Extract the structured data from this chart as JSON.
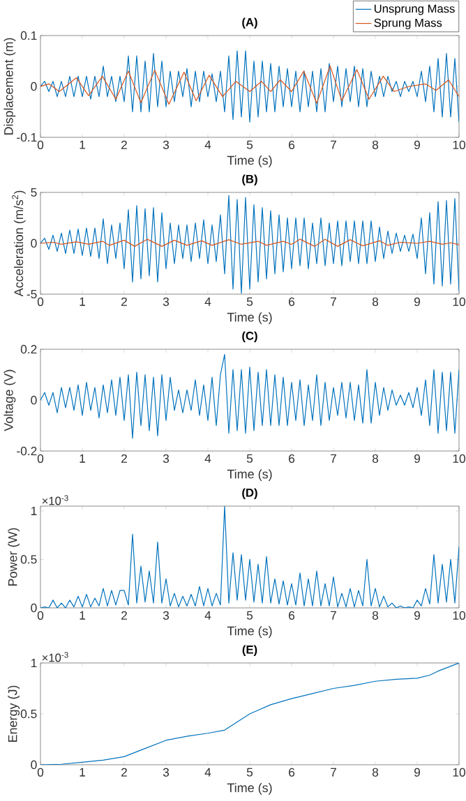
{
  "chart_data": [
    {
      "type": "line",
      "title": "(A)",
      "xlabel": "Time (s)",
      "ylabel": "Displacement (m)",
      "legend": "top right",
      "xlim": [
        0,
        10
      ],
      "xticks": [
        0,
        1,
        2,
        3,
        4,
        5,
        6,
        7,
        8,
        9,
        10
      ],
      "ylim": [
        -0.1,
        0.1
      ],
      "yticks": [
        -0.1,
        0,
        0.1
      ],
      "x": [
        0,
        0.1,
        0.2,
        0.3,
        0.4,
        0.5,
        0.6,
        0.7,
        0.8,
        0.9,
        1,
        1.1,
        1.2,
        1.3,
        1.4,
        1.5,
        1.6,
        1.7,
        1.8,
        1.9,
        2,
        2.1,
        2.2,
        2.3,
        2.4,
        2.5,
        2.6,
        2.7,
        2.8,
        2.9,
        3,
        3.1,
        3.2,
        3.3,
        3.4,
        3.5,
        3.6,
        3.7,
        3.8,
        3.9,
        4,
        4.1,
        4.2,
        4.3,
        4.4,
        4.5,
        4.6,
        4.7,
        4.8,
        4.9,
        5,
        5.1,
        5.2,
        5.3,
        5.4,
        5.5,
        5.6,
        5.7,
        5.8,
        5.9,
        6,
        6.1,
        6.2,
        6.3,
        6.4,
        6.5,
        6.6,
        6.7,
        6.8,
        6.9,
        7,
        7.1,
        7.2,
        7.3,
        7.4,
        7.5,
        7.6,
        7.7,
        7.8,
        7.9,
        8,
        8.1,
        8.2,
        8.3,
        8.4,
        8.5,
        8.6,
        8.7,
        8.8,
        8.9,
        9,
        9.1,
        9.2,
        9.3,
        9.4,
        9.5,
        9.6,
        9.7,
        9.8,
        9.9,
        10
      ],
      "series": [
        {
          "name": "Unsprung Mass",
          "color": "#0072bd",
          "values": [
            0,
            0.01,
            -0.01,
            0.01,
            -0.02,
            0.01,
            -0.02,
            0.02,
            -0.02,
            0.02,
            -0.02,
            0.02,
            -0.025,
            0.02,
            -0.02,
            0.04,
            -0.02,
            0.02,
            -0.03,
            0.02,
            -0.03,
            0.06,
            -0.05,
            0.06,
            -0.05,
            0.05,
            -0.05,
            0.065,
            -0.04,
            0.05,
            -0.04,
            0.03,
            -0.03,
            0.03,
            -0.02,
            0.035,
            -0.04,
            0.03,
            -0.03,
            0.03,
            -0.02,
            0.025,
            -0.03,
            0.03,
            -0.05,
            0.06,
            -0.065,
            0.07,
            -0.06,
            0.07,
            -0.07,
            0.05,
            -0.06,
            0.05,
            -0.05,
            0.045,
            -0.05,
            0.04,
            -0.04,
            0.035,
            -0.04,
            0.03,
            -0.05,
            0.03,
            -0.04,
            0.03,
            -0.05,
            0.035,
            -0.05,
            0.045,
            -0.03,
            0.04,
            -0.04,
            0.035,
            -0.03,
            0.04,
            -0.04,
            0.035,
            -0.04,
            0.03,
            -0.02,
            0.02,
            -0.02,
            0.02,
            -0.01,
            0.01,
            -0.02,
            0.01,
            -0.01,
            0.01,
            -0.02,
            0.03,
            -0.03,
            0.04,
            -0.05,
            0.055,
            -0.06,
            0.065,
            -0.06,
            0.055,
            -0.07
          ]
        },
        {
          "name": "Sprung Mass",
          "color": "#d95319",
          "x": [
            0,
            0.2,
            0.45,
            0.86,
            1.15,
            1.48,
            1.8,
            2.1,
            2.4,
            2.73,
            3.07,
            3.43,
            3.72,
            4.03,
            4.35,
            4.67,
            5.0,
            5.28,
            5.5,
            5.73,
            6.0,
            6.29,
            6.6,
            6.92,
            7.2,
            7.56,
            7.85,
            8.19,
            8.45,
            8.8,
            9.2,
            9.45,
            9.75,
            10
          ],
          "values": [
            0,
            0.005,
            -0.01,
            0.017,
            -0.018,
            0.02,
            -0.025,
            0.03,
            -0.032,
            0.032,
            -0.035,
            0.028,
            -0.028,
            0.022,
            -0.02,
            0.01,
            -0.01,
            0.01,
            -0.01,
            0.013,
            -0.01,
            0.03,
            -0.033,
            0.04,
            -0.028,
            0.033,
            -0.025,
            0.02,
            -0.01,
            0,
            0.005,
            -0.008,
            0.013,
            -0.02
          ]
        }
      ]
    },
    {
      "type": "line",
      "title": "(B)",
      "xlabel": "Time (s)",
      "ylabel": "Acceleration (m/s$^{2}$)",
      "xlim": [
        0,
        10
      ],
      "xticks": [
        0,
        1,
        2,
        3,
        4,
        5,
        6,
        7,
        8,
        9,
        10
      ],
      "ylim": [
        -5,
        5
      ],
      "yticks": [
        -5,
        0,
        5
      ],
      "x": [
        0,
        0.1,
        0.2,
        0.3,
        0.4,
        0.5,
        0.6,
        0.7,
        0.8,
        0.9,
        1,
        1.1,
        1.2,
        1.3,
        1.4,
        1.5,
        1.6,
        1.7,
        1.8,
        1.9,
        2,
        2.1,
        2.2,
        2.3,
        2.4,
        2.5,
        2.6,
        2.7,
        2.8,
        2.9,
        3,
        3.1,
        3.2,
        3.3,
        3.4,
        3.5,
        3.6,
        3.7,
        3.8,
        3.9,
        4,
        4.1,
        4.2,
        4.3,
        4.4,
        4.5,
        4.6,
        4.7,
        4.8,
        4.9,
        5,
        5.1,
        5.2,
        5.3,
        5.4,
        5.5,
        5.6,
        5.7,
        5.8,
        5.9,
        6,
        6.1,
        6.2,
        6.3,
        6.4,
        6.5,
        6.6,
        6.7,
        6.8,
        6.9,
        7,
        7.1,
        7.2,
        7.3,
        7.4,
        7.5,
        7.6,
        7.7,
        7.8,
        7.9,
        8,
        8.1,
        8.2,
        8.3,
        8.4,
        8.5,
        8.6,
        8.7,
        8.8,
        8.9,
        9,
        9.1,
        9.2,
        9.3,
        9.4,
        9.5,
        9.6,
        9.7,
        9.8,
        9.9,
        10
      ],
      "series": [
        {
          "color": "#0072bd",
          "values": [
            0,
            0.5,
            -0.6,
            0.8,
            -0.8,
            1,
            -1,
            1.3,
            -1,
            1.4,
            -1.2,
            1.5,
            -1.3,
            1.5,
            -1.5,
            2.4,
            -2,
            1.8,
            -1.5,
            2,
            -2.5,
            3.3,
            -3.8,
            3.7,
            -3.5,
            3.4,
            -3.2,
            3.5,
            -3.8,
            3,
            -2.5,
            2,
            -2,
            1.8,
            -1.5,
            1.8,
            -1.8,
            2,
            -1.5,
            2.3,
            -2,
            1.8,
            -1.8,
            2.8,
            -3,
            4.7,
            -4.5,
            4.3,
            -4.9,
            4.5,
            -4.5,
            3.8,
            -3.8,
            3.5,
            -3.5,
            3.2,
            -3,
            2.8,
            -2.8,
            2.5,
            -2.5,
            2.5,
            -2.2,
            2.5,
            -2.5,
            2,
            -2,
            2.5,
            -2.2,
            2,
            -2,
            2.2,
            -2.2,
            2.2,
            -1.8,
            2.2,
            -2,
            2.2,
            -2,
            2.2,
            -1.8,
            1.6,
            -1.5,
            1.2,
            -1,
            1,
            -0.8,
            0.8,
            -0.8,
            0.9,
            -1.5,
            2.5,
            -3,
            3,
            -4,
            4.1,
            -4.2,
            4.2,
            -4,
            4.4,
            -4.7
          ]
        },
        {
          "color": "#d95319",
          "x": [
            0,
            0.3,
            0.5,
            0.86,
            1.15,
            1.48,
            1.65,
            2.0,
            2.25,
            2.55,
            2.9,
            3.2,
            3.5,
            3.85,
            4.1,
            4.5,
            4.8,
            5.2,
            5.4,
            5.8,
            6.0,
            6.2,
            6.55,
            6.8,
            7.1,
            7.4,
            7.7,
            8.1,
            8.3,
            8.6,
            9.0,
            9.3,
            9.6,
            9.8,
            10
          ],
          "values": [
            0,
            0.1,
            -0.1,
            0.15,
            -0.1,
            0.2,
            -0.2,
            0.3,
            -0.3,
            0.4,
            -0.3,
            0.3,
            -0.2,
            0.25,
            -0.2,
            0.35,
            -0.1,
            0.2,
            -0.2,
            0.2,
            -0.1,
            0.4,
            -0.3,
            0.4,
            -0.3,
            0.35,
            -0.25,
            0.25,
            -0.2,
            0.1,
            0,
            0.2,
            -0.1,
            0.05,
            -0.15
          ]
        }
      ]
    },
    {
      "type": "line",
      "title": "(C)",
      "xlabel": "Time (s)",
      "ylabel": "Voltage (V)",
      "xlim": [
        0,
        10
      ],
      "xticks": [
        0,
        1,
        2,
        3,
        4,
        5,
        6,
        7,
        8,
        9,
        10
      ],
      "ylim": [
        -0.2,
        0.2
      ],
      "yticks": [
        -0.2,
        0,
        0.2
      ],
      "x": [
        0,
        0.1,
        0.2,
        0.3,
        0.4,
        0.5,
        0.6,
        0.7,
        0.8,
        0.9,
        1,
        1.1,
        1.2,
        1.3,
        1.4,
        1.5,
        1.6,
        1.7,
        1.8,
        1.9,
        2,
        2.1,
        2.2,
        2.3,
        2.4,
        2.5,
        2.6,
        2.7,
        2.8,
        2.9,
        3,
        3.1,
        3.2,
        3.3,
        3.4,
        3.5,
        3.6,
        3.7,
        3.8,
        3.9,
        4,
        4.1,
        4.2,
        4.3,
        4.4,
        4.5,
        4.6,
        4.7,
        4.8,
        4.9,
        5,
        5.1,
        5.2,
        5.3,
        5.4,
        5.5,
        5.6,
        5.7,
        5.8,
        5.9,
        6,
        6.1,
        6.2,
        6.3,
        6.4,
        6.5,
        6.6,
        6.7,
        6.8,
        6.9,
        7,
        7.1,
        7.2,
        7.3,
        7.4,
        7.5,
        7.6,
        7.7,
        7.8,
        7.9,
        8,
        8.1,
        8.2,
        8.3,
        8.4,
        8.5,
        8.6,
        8.7,
        8.8,
        8.9,
        9,
        9.1,
        9.2,
        9.3,
        9.4,
        9.5,
        9.6,
        9.7,
        9.8,
        9.9,
        10
      ],
      "series": [
        {
          "color": "#0072bd",
          "values": [
            0,
            0.03,
            -0.02,
            0.03,
            -0.05,
            0.05,
            -0.03,
            0.05,
            -0.04,
            0.06,
            -0.06,
            0.07,
            -0.04,
            0.05,
            -0.07,
            0.06,
            -0.05,
            0.08,
            -0.06,
            0.09,
            -0.08,
            0.1,
            -0.15,
            0.11,
            -0.1,
            0.1,
            -0.12,
            0.09,
            -0.14,
            0.1,
            -0.08,
            0.09,
            -0.04,
            0.04,
            -0.05,
            0.04,
            -0.04,
            0.08,
            -0.06,
            0.06,
            -0.08,
            0.09,
            -0.1,
            0.1,
            0.18,
            -0.13,
            0.12,
            -0.12,
            0.12,
            -0.13,
            0.13,
            -0.12,
            0.11,
            -0.1,
            0.12,
            -0.1,
            0.1,
            -0.1,
            0.09,
            -0.1,
            0.07,
            -0.08,
            0.08,
            -0.1,
            0.06,
            -0.08,
            0.1,
            -0.1,
            0.07,
            -0.08,
            0.05,
            -0.06,
            0.07,
            -0.07,
            0.07,
            -0.08,
            0.06,
            -0.09,
            0.12,
            -0.09,
            0.07,
            -0.06,
            0.05,
            -0.04,
            0.04,
            -0.02,
            0.02,
            -0.02,
            0.03,
            -0.03,
            0.05,
            -0.06,
            0.08,
            -0.1,
            0.12,
            -0.13,
            0.11,
            -0.12,
            0.11,
            -0.13,
            0.12
          ]
        }
      ]
    },
    {
      "type": "line",
      "title": "(D)",
      "xlabel": "Time (s)",
      "ylabel": "Power (W)",
      "annotations": [
        "×10$^{-3}$"
      ],
      "xlim": [
        0,
        10
      ],
      "xticks": [
        0,
        1,
        2,
        3,
        4,
        5,
        6,
        7,
        8,
        9,
        10
      ],
      "ylim": [
        0,
        1.05
      ],
      "yticks": [
        0,
        0.5,
        1
      ],
      "x": [
        0,
        0.1,
        0.2,
        0.3,
        0.4,
        0.5,
        0.6,
        0.7,
        0.8,
        0.9,
        1,
        1.1,
        1.2,
        1.3,
        1.4,
        1.5,
        1.6,
        1.7,
        1.8,
        1.9,
        2,
        2.1,
        2.2,
        2.3,
        2.4,
        2.5,
        2.6,
        2.7,
        2.8,
        2.9,
        3,
        3.1,
        3.2,
        3.3,
        3.4,
        3.5,
        3.6,
        3.7,
        3.8,
        3.9,
        4,
        4.1,
        4.2,
        4.3,
        4.4,
        4.5,
        4.6,
        4.7,
        4.8,
        4.9,
        5,
        5.1,
        5.2,
        5.3,
        5.4,
        5.5,
        5.6,
        5.7,
        5.8,
        5.9,
        6,
        6.1,
        6.2,
        6.3,
        6.4,
        6.5,
        6.6,
        6.7,
        6.8,
        6.9,
        7,
        7.1,
        7.2,
        7.3,
        7.4,
        7.5,
        7.6,
        7.7,
        7.8,
        7.9,
        8,
        8.1,
        8.2,
        8.3,
        8.4,
        8.5,
        8.6,
        8.7,
        8.8,
        8.9,
        9,
        9.1,
        9.2,
        9.3,
        9.4,
        9.5,
        9.6,
        9.7,
        9.8,
        9.9,
        10
      ],
      "series": [
        {
          "color": "#0072bd",
          "values": [
            0,
            0.01,
            0,
            0.08,
            0,
            0.05,
            0,
            0.08,
            0.01,
            0.12,
            0.01,
            0.14,
            0.01,
            0.1,
            0.02,
            0.2,
            0.02,
            0.18,
            0.03,
            0.18,
            0.18,
            0.03,
            0.76,
            0.05,
            0.43,
            0.06,
            0.38,
            0.05,
            0.68,
            0.05,
            0.3,
            0.02,
            0.15,
            0.01,
            0.12,
            0.02,
            0.14,
            0.02,
            0.22,
            0.02,
            0.2,
            0.02,
            0.15,
            0.03,
            1.05,
            0.05,
            0.57,
            0.08,
            0.55,
            0.08,
            0.5,
            0.06,
            0.45,
            0.05,
            0.53,
            0.05,
            0.3,
            0.04,
            0.28,
            0.03,
            0.25,
            0.03,
            0.36,
            0.02,
            0.3,
            0.02,
            0.38,
            0.02,
            0.25,
            0.02,
            0.32,
            0.01,
            0.15,
            0.01,
            0.2,
            0.01,
            0.18,
            0.02,
            0.5,
            0.02,
            0.2,
            0.01,
            0.12,
            0.01,
            0.05,
            0,
            0.02,
            0,
            0.01,
            0,
            0.08,
            0.02,
            0.2,
            0.04,
            0.55,
            0.05,
            0.45,
            0.06,
            0.5,
            0.05,
            0.63
          ]
        }
      ]
    },
    {
      "type": "line",
      "title": "(E)",
      "xlabel": "Time (s)",
      "ylabel": "Energy (J)",
      "annotations": [
        "×10$^{-3}$"
      ],
      "xlim": [
        0,
        10
      ],
      "xticks": [
        0,
        1,
        2,
        3,
        4,
        5,
        6,
        7,
        8,
        9,
        10
      ],
      "ylim": [
        0,
        1
      ],
      "yticks": [
        0,
        0.5,
        1
      ],
      "x": [
        0,
        0.5,
        1,
        1.5,
        2,
        2.5,
        3,
        3.5,
        4,
        4.4,
        5,
        5.5,
        6,
        6.5,
        7,
        7.5,
        8,
        8.5,
        9,
        9.3,
        9.5,
        10
      ],
      "series": [
        {
          "color": "#0072bd",
          "values": [
            0,
            0.005,
            0.025,
            0.045,
            0.08,
            0.16,
            0.24,
            0.28,
            0.31,
            0.34,
            0.5,
            0.59,
            0.65,
            0.7,
            0.75,
            0.78,
            0.82,
            0.84,
            0.85,
            0.88,
            0.92,
            1
          ]
        }
      ]
    }
  ]
}
